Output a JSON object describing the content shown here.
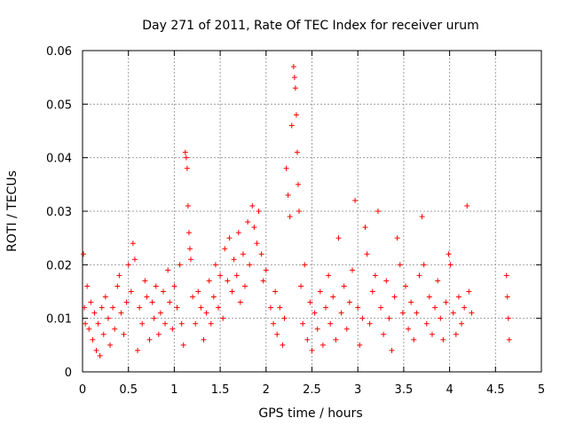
{
  "chart_data": {
    "type": "scatter",
    "title": "Day 271 of 2011, Rate Of TEC Index for receiver urum",
    "xlabel": "GPS time / hours",
    "ylabel": "ROTI / TECUs",
    "xlim": [
      0,
      5
    ],
    "ylim": [
      0,
      0.06
    ],
    "x_ticks": [
      "0",
      "0.5",
      "1",
      "1.5",
      "2",
      "2.5",
      "3",
      "3.5",
      "4",
      "4.5",
      "5"
    ],
    "y_ticks": [
      "0",
      "0.01",
      "0.02",
      "0.03",
      "0.04",
      "0.05",
      "0.06"
    ],
    "grid": true,
    "marker": "+",
    "color": "#ff0000",
    "series": [
      {
        "name": "ROTI",
        "points": [
          [
            0.01,
            0.022
          ],
          [
            0.02,
            0.012
          ],
          [
            0.03,
            0.009
          ],
          [
            0.05,
            0.016
          ],
          [
            0.07,
            0.008
          ],
          [
            0.09,
            0.013
          ],
          [
            0.11,
            0.006
          ],
          [
            0.13,
            0.011
          ],
          [
            0.15,
            0.004
          ],
          [
            0.17,
            0.009
          ],
          [
            0.19,
            0.003
          ],
          [
            0.21,
            0.012
          ],
          [
            0.23,
            0.007
          ],
          [
            0.25,
            0.014
          ],
          [
            0.28,
            0.01
          ],
          [
            0.3,
            0.005
          ],
          [
            0.33,
            0.012
          ],
          [
            0.35,
            0.008
          ],
          [
            0.38,
            0.016
          ],
          [
            0.4,
            0.018
          ],
          [
            0.42,
            0.011
          ],
          [
            0.45,
            0.007
          ],
          [
            0.48,
            0.013
          ],
          [
            0.5,
            0.02
          ],
          [
            0.53,
            0.015
          ],
          [
            0.55,
            0.024
          ],
          [
            0.57,
            0.021
          ],
          [
            0.6,
            0.004
          ],
          [
            0.62,
            0.012
          ],
          [
            0.65,
            0.009
          ],
          [
            0.68,
            0.017
          ],
          [
            0.7,
            0.014
          ],
          [
            0.73,
            0.006
          ],
          [
            0.76,
            0.013
          ],
          [
            0.78,
            0.01
          ],
          [
            0.8,
            0.016
          ],
          [
            0.83,
            0.007
          ],
          [
            0.85,
            0.011
          ],
          [
            0.88,
            0.015
          ],
          [
            0.9,
            0.009
          ],
          [
            0.93,
            0.019
          ],
          [
            0.95,
            0.013
          ],
          [
            0.98,
            0.008
          ],
          [
            1.0,
            0.016
          ],
          [
            1.03,
            0.012
          ],
          [
            1.06,
            0.02
          ],
          [
            1.08,
            0.009
          ],
          [
            1.1,
            0.005
          ],
          [
            1.12,
            0.041
          ],
          [
            1.13,
            0.04
          ],
          [
            1.14,
            0.038
          ],
          [
            1.15,
            0.031
          ],
          [
            1.16,
            0.026
          ],
          [
            1.17,
            0.023
          ],
          [
            1.18,
            0.021
          ],
          [
            1.2,
            0.014
          ],
          [
            1.23,
            0.009
          ],
          [
            1.26,
            0.015
          ],
          [
            1.29,
            0.012
          ],
          [
            1.32,
            0.006
          ],
          [
            1.35,
            0.011
          ],
          [
            1.38,
            0.017
          ],
          [
            1.4,
            0.009
          ],
          [
            1.43,
            0.014
          ],
          [
            1.45,
            0.02
          ],
          [
            1.48,
            0.012
          ],
          [
            1.5,
            0.018
          ],
          [
            1.53,
            0.01
          ],
          [
            1.55,
            0.023
          ],
          [
            1.58,
            0.017
          ],
          [
            1.6,
            0.025
          ],
          [
            1.63,
            0.015
          ],
          [
            1.65,
            0.021
          ],
          [
            1.68,
            0.018
          ],
          [
            1.7,
            0.026
          ],
          [
            1.72,
            0.013
          ],
          [
            1.75,
            0.022
          ],
          [
            1.77,
            0.016
          ],
          [
            1.8,
            0.028
          ],
          [
            1.82,
            0.02
          ],
          [
            1.85,
            0.031
          ],
          [
            1.87,
            0.027
          ],
          [
            1.9,
            0.024
          ],
          [
            1.92,
            0.03
          ],
          [
            1.95,
            0.022
          ],
          [
            1.97,
            0.017
          ],
          [
            2.0,
            0.019
          ],
          [
            2.05,
            0.012
          ],
          [
            2.08,
            0.009
          ],
          [
            2.1,
            0.015
          ],
          [
            2.12,
            0.007
          ],
          [
            2.15,
            0.012
          ],
          [
            2.18,
            0.005
          ],
          [
            2.2,
            0.01
          ],
          [
            2.22,
            0.038
          ],
          [
            2.24,
            0.033
          ],
          [
            2.26,
            0.029
          ],
          [
            2.28,
            0.046
          ],
          [
            2.3,
            0.057
          ],
          [
            2.31,
            0.055
          ],
          [
            2.32,
            0.053
          ],
          [
            2.33,
            0.048
          ],
          [
            2.34,
            0.041
          ],
          [
            2.35,
            0.035
          ],
          [
            2.36,
            0.03
          ],
          [
            2.38,
            0.016
          ],
          [
            2.4,
            0.009
          ],
          [
            2.42,
            0.02
          ],
          [
            2.45,
            0.006
          ],
          [
            2.48,
            0.013
          ],
          [
            2.5,
            0.004
          ],
          [
            2.53,
            0.011
          ],
          [
            2.56,
            0.008
          ],
          [
            2.59,
            0.015
          ],
          [
            2.62,
            0.005
          ],
          [
            2.65,
            0.012
          ],
          [
            2.68,
            0.018
          ],
          [
            2.7,
            0.009
          ],
          [
            2.73,
            0.014
          ],
          [
            2.76,
            0.006
          ],
          [
            2.79,
            0.025
          ],
          [
            2.82,
            0.011
          ],
          [
            2.85,
            0.016
          ],
          [
            2.88,
            0.008
          ],
          [
            2.91,
            0.013
          ],
          [
            2.94,
            0.019
          ],
          [
            2.97,
            0.032
          ],
          [
            3.0,
            0.012
          ],
          [
            3.02,
            0.005
          ],
          [
            3.05,
            0.01
          ],
          [
            3.08,
            0.027
          ],
          [
            3.1,
            0.022
          ],
          [
            3.13,
            0.009
          ],
          [
            3.16,
            0.015
          ],
          [
            3.19,
            0.018
          ],
          [
            3.22,
            0.03
          ],
          [
            3.25,
            0.012
          ],
          [
            3.28,
            0.007
          ],
          [
            3.31,
            0.017
          ],
          [
            3.34,
            0.01
          ],
          [
            3.37,
            0.004
          ],
          [
            3.4,
            0.014
          ],
          [
            3.43,
            0.025
          ],
          [
            3.46,
            0.02
          ],
          [
            3.49,
            0.011
          ],
          [
            3.52,
            0.016
          ],
          [
            3.55,
            0.008
          ],
          [
            3.58,
            0.013
          ],
          [
            3.61,
            0.006
          ],
          [
            3.64,
            0.011
          ],
          [
            3.67,
            0.018
          ],
          [
            3.7,
            0.029
          ],
          [
            3.72,
            0.02
          ],
          [
            3.75,
            0.009
          ],
          [
            3.78,
            0.014
          ],
          [
            3.81,
            0.007
          ],
          [
            3.84,
            0.012
          ],
          [
            3.87,
            0.017
          ],
          [
            3.9,
            0.01
          ],
          [
            3.93,
            0.006
          ],
          [
            3.96,
            0.013
          ],
          [
            3.99,
            0.022
          ],
          [
            4.01,
            0.02
          ],
          [
            4.04,
            0.011
          ],
          [
            4.07,
            0.007
          ],
          [
            4.1,
            0.014
          ],
          [
            4.13,
            0.009
          ],
          [
            4.16,
            0.012
          ],
          [
            4.19,
            0.031
          ],
          [
            4.21,
            0.015
          ],
          [
            4.24,
            0.011
          ],
          [
            4.62,
            0.018
          ],
          [
            4.63,
            0.014
          ],
          [
            4.64,
            0.01
          ],
          [
            4.65,
            0.006
          ]
        ]
      }
    ]
  }
}
